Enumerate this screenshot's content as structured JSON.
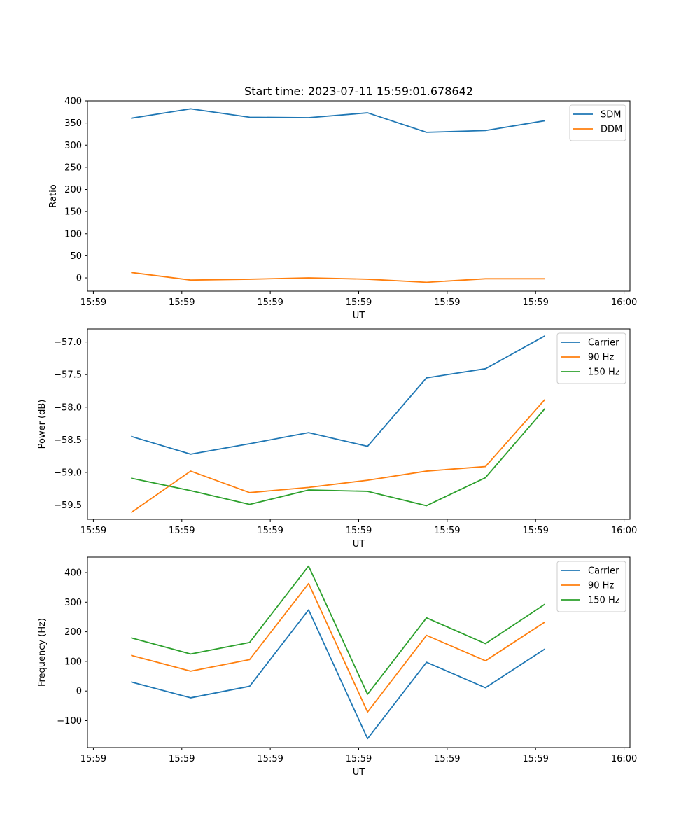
{
  "chart_data": [
    {
      "type": "line",
      "title": "Start time: 2023-07-11 15:59:01.678642",
      "xlabel": "UT",
      "ylabel": "Ratio",
      "x": [
        0,
        1,
        2,
        3,
        4,
        5,
        6,
        7
      ],
      "xlim": [
        -0.75,
        8.45
      ],
      "xticks": [
        -0.65,
        0.85,
        2.35,
        3.85,
        5.35,
        6.85,
        8.35
      ],
      "xtick_labels": [
        "15:59",
        "15:59",
        "15:59",
        "15:59",
        "15:59",
        "15:59",
        "16:00"
      ],
      "ylim": [
        -30,
        400
      ],
      "yticks": [
        0,
        50,
        100,
        150,
        200,
        250,
        300,
        350,
        400
      ],
      "ytick_labels": [
        "0",
        "50",
        "100",
        "150",
        "200",
        "250",
        "300",
        "350",
        "400"
      ],
      "legend": "top-right",
      "series": [
        {
          "name": "SDM",
          "color": "#1f77b4",
          "values": [
            361,
            382,
            363,
            362,
            373,
            329,
            333,
            355
          ]
        },
        {
          "name": "DDM",
          "color": "#ff7f0e",
          "values": [
            12,
            -5,
            -3,
            0,
            -3,
            -10,
            -2,
            -2
          ]
        }
      ]
    },
    {
      "type": "line",
      "title": "",
      "xlabel": "UT",
      "ylabel": "Power (dB)",
      "x": [
        0,
        1,
        2,
        3,
        4,
        5,
        6,
        7
      ],
      "xlim": [
        -0.75,
        8.45
      ],
      "xticks": [
        -0.65,
        0.85,
        2.35,
        3.85,
        5.35,
        6.85,
        8.35
      ],
      "xtick_labels": [
        "15:59",
        "15:59",
        "15:59",
        "15:59",
        "15:59",
        "15:59",
        "16:00"
      ],
      "ylim": [
        -59.72,
        -56.8
      ],
      "yticks": [
        -59.5,
        -59.0,
        -58.5,
        -58.0,
        -57.5,
        -57.0
      ],
      "ytick_labels": [
        "−59.5",
        "−59.0",
        "−58.5",
        "−58.0",
        "−57.5",
        "−57.0"
      ],
      "legend": "top-right",
      "series": [
        {
          "name": "Carrier",
          "color": "#1f77b4",
          "values": [
            -58.45,
            -58.72,
            -58.56,
            -58.39,
            -58.6,
            -57.55,
            -57.41,
            -56.91
          ]
        },
        {
          "name": "90 Hz",
          "color": "#ff7f0e",
          "values": [
            -59.61,
            -58.98,
            -59.31,
            -59.23,
            -59.12,
            -58.98,
            -58.91,
            -57.89
          ]
        },
        {
          "name": "150 Hz",
          "color": "#2ca02c",
          "values": [
            -59.09,
            -59.28,
            -59.49,
            -59.27,
            -59.29,
            -59.51,
            -59.08,
            -58.03
          ]
        }
      ]
    },
    {
      "type": "line",
      "title": "",
      "xlabel": "UT",
      "ylabel": "Frequency (Hz)",
      "x": [
        0,
        1,
        2,
        3,
        4,
        5,
        6,
        7
      ],
      "xlim": [
        -0.75,
        8.45
      ],
      "xticks": [
        -0.65,
        0.85,
        2.35,
        3.85,
        5.35,
        6.85,
        8.35
      ],
      "xtick_labels": [
        "15:59",
        "15:59",
        "15:59",
        "15:59",
        "15:59",
        "15:59",
        "16:00"
      ],
      "ylim": [
        -191,
        452
      ],
      "yticks": [
        -100,
        0,
        100,
        200,
        300,
        400
      ],
      "ytick_labels": [
        "−100",
        "0",
        "100",
        "200",
        "300",
        "400"
      ],
      "legend": "top-right",
      "series": [
        {
          "name": "Carrier",
          "color": "#1f77b4",
          "values": [
            30,
            -23,
            16,
            274,
            -161,
            97,
            11,
            141
          ]
        },
        {
          "name": "90 Hz",
          "color": "#ff7f0e",
          "values": [
            120,
            67,
            106,
            363,
            -71,
            188,
            102,
            232
          ]
        },
        {
          "name": "150 Hz",
          "color": "#2ca02c",
          "values": [
            179,
            125,
            164,
            422,
            -11,
            247,
            160,
            292
          ]
        }
      ]
    }
  ]
}
